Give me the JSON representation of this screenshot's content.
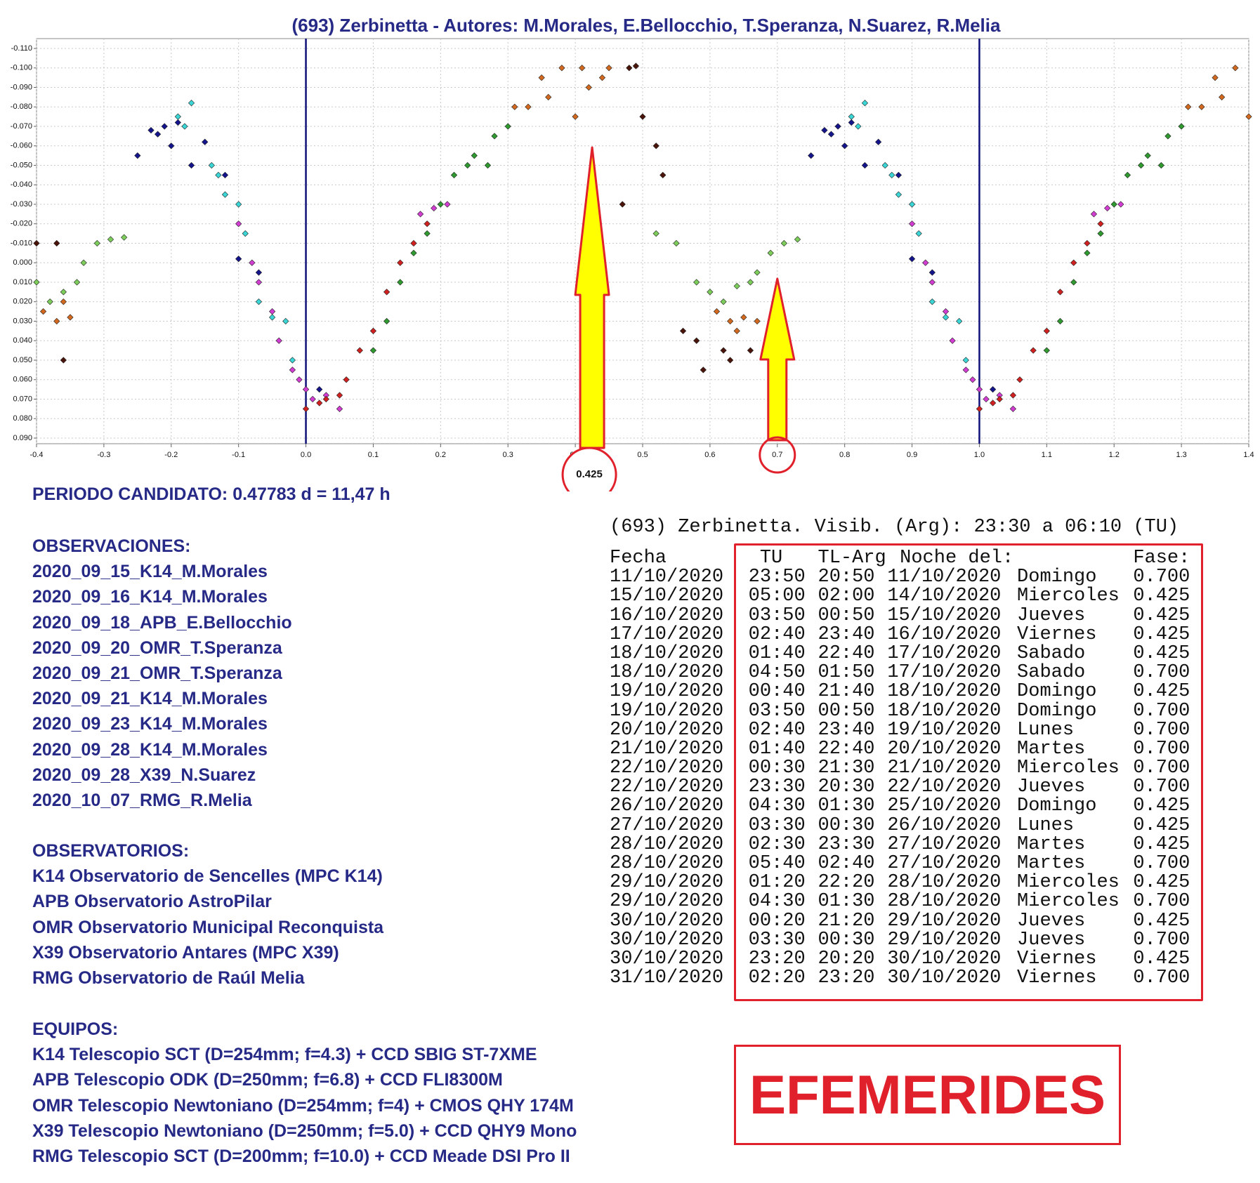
{
  "chart_data": {
    "type": "scatter",
    "title": "(693) Zerbinetta - Autores: M.Morales, E.Bellocchio, T.Speranza, N.Suarez, R.Melia",
    "xlim": [
      -0.4,
      1.4
    ],
    "xticks": [
      {
        "value": -0.4,
        "label": "-0.4"
      },
      {
        "value": -0.3,
        "label": "-0.3"
      },
      {
        "value": -0.2,
        "label": "-0.2"
      },
      {
        "value": -0.1,
        "label": "-0.1"
      },
      {
        "value": 0,
        "label": "0.0"
      },
      {
        "value": 0.1,
        "label": "0.1"
      },
      {
        "value": 0.2,
        "label": "0.2"
      },
      {
        "value": 0.3,
        "label": "0.3"
      },
      {
        "value": 0.4,
        "label": "0.4"
      },
      {
        "value": 0.5,
        "label": "0.5"
      },
      {
        "value": 0.6,
        "label": "0.6"
      },
      {
        "value": 0.7,
        "label": "0.7"
      },
      {
        "value": 0.8,
        "label": "0.8"
      },
      {
        "value": 0.9,
        "label": "0.9"
      },
      {
        "value": 1,
        "label": "1.0"
      },
      {
        "value": 1.1,
        "label": "1.1"
      },
      {
        "value": 1.2,
        "label": "1.2"
      },
      {
        "value": 1.3,
        "label": "1.3"
      },
      {
        "value": 1.4,
        "label": "1.4"
      }
    ],
    "ylim": [
      -0.11,
      0.09
    ],
    "y_inverted": true,
    "yticks": [
      {
        "value": -0.11,
        "label": "-0.110"
      },
      {
        "value": -0.1,
        "label": "-0.100"
      },
      {
        "value": -0.09,
        "label": "-0.090"
      },
      {
        "value": -0.08,
        "label": "-0.080"
      },
      {
        "value": -0.07,
        "label": "-0.070"
      },
      {
        "value": -0.06,
        "label": "-0.060"
      },
      {
        "value": -0.05,
        "label": "-0.050"
      },
      {
        "value": -0.04,
        "label": "-0.040"
      },
      {
        "value": -0.03,
        "label": "-0.030"
      },
      {
        "value": -0.02,
        "label": "-0.020"
      },
      {
        "value": -0.01,
        "label": "-0.010"
      },
      {
        "value": 0,
        "label": "0.000"
      },
      {
        "value": 0.01,
        "label": "0.010"
      },
      {
        "value": 0.02,
        "label": "0.020"
      },
      {
        "value": 0.03,
        "label": "0.030"
      },
      {
        "value": 0.04,
        "label": "0.040"
      },
      {
        "value": 0.05,
        "label": "0.050"
      },
      {
        "value": 0.06,
        "label": "0.060"
      },
      {
        "value": 0.07,
        "label": "0.070"
      },
      {
        "value": 0.08,
        "label": "0.080"
      },
      {
        "value": 0.09,
        "label": "0.090"
      }
    ],
    "grid": true,
    "marker": "diamond",
    "vlines": [
      0,
      1
    ],
    "vline_color": "#10107a",
    "arrows": [
      {
        "x": 0.425,
        "label": "0.425"
      },
      {
        "x": 0.7
      }
    ],
    "series": [
      {
        "color": "#14148c",
        "x": [
          -0.25,
          -0.23,
          -0.22,
          -0.21,
          -0.2,
          -0.19,
          -0.17,
          -0.15,
          -0.12,
          -0.1,
          -0.07,
          0.02,
          0.75,
          0.77,
          0.78,
          0.79,
          0.8,
          0.81,
          0.83,
          0.85,
          0.88,
          0.9,
          0.93,
          1.02
        ],
        "values": [
          -0.055,
          -0.068,
          -0.066,
          -0.07,
          -0.06,
          -0.072,
          -0.05,
          -0.062,
          -0.045,
          -0.002,
          0.005,
          0.065,
          -0.055,
          -0.068,
          -0.066,
          -0.07,
          -0.06,
          -0.072,
          -0.05,
          -0.062,
          -0.045,
          -0.002,
          0.005,
          0.065
        ]
      },
      {
        "color": "#3ad6d6",
        "x": [
          -0.19,
          -0.18,
          -0.17,
          -0.14,
          -0.13,
          -0.12,
          -0.1,
          -0.09,
          -0.07,
          -0.05,
          -0.03,
          -0.02,
          0.81,
          0.82,
          0.83,
          0.86,
          0.87,
          0.88,
          0.9,
          0.91,
          0.93,
          0.95,
          0.97,
          0.98
        ],
        "values": [
          -0.075,
          -0.07,
          -0.082,
          -0.05,
          -0.045,
          -0.035,
          -0.03,
          -0.015,
          0.02,
          0.028,
          0.03,
          0.05,
          -0.075,
          -0.07,
          -0.082,
          -0.05,
          -0.045,
          -0.035,
          -0.03,
          -0.015,
          0.02,
          0.028,
          0.03,
          0.05
        ]
      },
      {
        "color": "#d23cd2",
        "x": [
          -0.1,
          -0.08,
          -0.07,
          -0.05,
          -0.04,
          -0.02,
          -0.01,
          0,
          0.01,
          0.03,
          0.05,
          0.17,
          0.19,
          0.21,
          0.9,
          0.92,
          0.93,
          0.95,
          0.96,
          0.98,
          0.99,
          1,
          1.01,
          1.03,
          1.05,
          1.17,
          1.19,
          1.21
        ],
        "values": [
          -0.02,
          0,
          0.01,
          0.025,
          0.04,
          0.055,
          0.06,
          0.065,
          0.07,
          0.068,
          0.075,
          -0.025,
          -0.028,
          -0.03,
          -0.02,
          0,
          0.01,
          0.025,
          0.04,
          0.055,
          0.06,
          0.065,
          0.07,
          0.068,
          0.075,
          -0.025,
          -0.028,
          -0.03
        ]
      },
      {
        "color": "#2f9a2f",
        "x": [
          0.1,
          0.12,
          0.14,
          0.16,
          0.18,
          0.2,
          0.22,
          0.24,
          0.25,
          0.27,
          0.28,
          0.3,
          1.1,
          1.12,
          1.14,
          1.16,
          1.18,
          1.2,
          1.22,
          1.24,
          1.25,
          1.27,
          1.28,
          1.3
        ],
        "values": [
          0.045,
          0.03,
          0.01,
          -0.005,
          -0.015,
          -0.03,
          -0.045,
          -0.05,
          -0.055,
          -0.05,
          -0.065,
          -0.07,
          0.045,
          0.03,
          0.01,
          -0.005,
          -0.015,
          -0.03,
          -0.045,
          -0.05,
          -0.055,
          -0.05,
          -0.065,
          -0.07
        ]
      },
      {
        "color": "#7ccd5a",
        "x": [
          -0.4,
          -0.38,
          -0.36,
          -0.34,
          -0.33,
          -0.31,
          -0.29,
          -0.27,
          0.52,
          0.55,
          0.58,
          0.6,
          0.62,
          0.64,
          0.66,
          0.67,
          0.69,
          0.71,
          0.73
        ],
        "values": [
          0.01,
          0.02,
          0.015,
          0.01,
          0,
          -0.01,
          -0.012,
          -0.013,
          -0.015,
          -0.01,
          0.01,
          0.015,
          0.02,
          0.012,
          0.01,
          0.005,
          -0.005,
          -0.01,
          -0.012
        ]
      },
      {
        "color": "#d02020",
        "x": [
          0,
          0.02,
          0.03,
          0.05,
          0.06,
          0.08,
          0.1,
          0.12,
          0.14,
          0.16,
          0.18,
          1,
          1.02,
          1.03,
          1.05,
          1.06,
          1.08,
          1.1,
          1.12,
          1.14,
          1.16,
          1.18
        ],
        "values": [
          0.075,
          0.072,
          0.07,
          0.068,
          0.06,
          0.045,
          0.035,
          0.015,
          0,
          -0.01,
          -0.02,
          0.075,
          0.072,
          0.07,
          0.068,
          0.06,
          0.045,
          0.035,
          0.015,
          0,
          -0.01,
          -0.02
        ]
      },
      {
        "color": "#d2691e",
        "x": [
          0.31,
          0.33,
          0.35,
          0.36,
          0.38,
          0.4,
          0.41,
          0.42,
          0.44,
          0.45,
          -0.39,
          -0.37,
          -0.36,
          -0.35,
          0.61,
          0.63,
          0.64,
          0.65,
          0.67,
          1.31,
          1.33,
          1.35,
          1.36,
          1.38,
          1.4
        ],
        "values": [
          -0.08,
          -0.08,
          -0.095,
          -0.085,
          -0.1,
          -0.075,
          -0.1,
          -0.09,
          -0.095,
          -0.1,
          0.025,
          0.03,
          0.02,
          0.028,
          0.025,
          0.03,
          0.035,
          0.028,
          0.03,
          -0.08,
          -0.08,
          -0.095,
          -0.085,
          -0.1,
          -0.075
        ]
      },
      {
        "color": "#4a140a",
        "x": [
          0.48,
          0.49,
          0.5,
          0.52,
          0.53,
          0.47,
          0.56,
          0.58,
          0.59,
          0.62,
          0.63,
          0.66,
          -0.4,
          -0.37,
          -0.36
        ],
        "values": [
          -0.1,
          -0.101,
          -0.075,
          -0.06,
          -0.045,
          -0.03,
          0.035,
          0.04,
          0.055,
          0.045,
          0.05,
          0.045,
          -0.01,
          -0.01,
          0.05
        ]
      }
    ]
  },
  "period": "PERIODO CANDIDATO: 0.47783 d = 11,47 h",
  "observations": {
    "title": "OBSERVACIONES:",
    "items": [
      "2020_09_15_K14_M.Morales",
      "2020_09_16_K14_M.Morales",
      "2020_09_18_APB_E.Bellocchio",
      "2020_09_20_OMR_T.Speranza",
      "2020_09_21_OMR_T.Speranza",
      "2020_09_21_K14_M.Morales",
      "2020_09_23_K14_M.Morales",
      "2020_09_28_K14_M.Morales",
      "2020_09_28_X39_N.Suarez",
      "2020_10_07_RMG_R.Melia"
    ]
  },
  "observatories": {
    "title": "OBSERVATORIOS:",
    "items": [
      "K14 Observatorio de Sencelles (MPC K14)",
      "APB Observatorio AstroPilar",
      "OMR Observatorio Municipal Reconquista",
      "X39 Observatorio Antares (MPC X39)",
      "RMG Observatorio de Raúl Melia"
    ]
  },
  "equipment": {
    "title": "EQUIPOS:",
    "items": [
      "K14 Telescopio SCT (D=254mm; f=4.3) + CCD SBIG ST-7XME",
      "APB Telescopio ODK (D=250mm; f=6.8) + CCD FLI8300M",
      "OMR Telescopio Newtoniano (D=254mm; f=4) + CMOS QHY 174M",
      "X39 Telescopio Newtoniano (D=250mm; f=5.0) + CCD QHY9 Mono",
      "RMG Telescopio SCT (D=200mm; f=10.0) + CCD Meade DSI Pro II"
    ]
  },
  "ephemeris": {
    "title": "(693) Zerbinetta. Visib. (Arg): 23:30 a 06:10 (TU)",
    "columns": [
      "Fecha",
      "TU",
      "TL-Arg",
      "Noche del:",
      "Fase:"
    ],
    "rows": [
      [
        "11/10/2020",
        "23:50",
        "20:50",
        "11/10/2020",
        "Domingo",
        "0.700"
      ],
      [
        "15/10/2020",
        "05:00",
        "02:00",
        "14/10/2020",
        "Miercoles",
        "0.425"
      ],
      [
        "16/10/2020",
        "03:50",
        "00:50",
        "15/10/2020",
        "Jueves",
        "0.425"
      ],
      [
        "17/10/2020",
        "02:40",
        "23:40",
        "16/10/2020",
        "Viernes",
        "0.425"
      ],
      [
        "18/10/2020",
        "01:40",
        "22:40",
        "17/10/2020",
        "Sabado",
        "0.425"
      ],
      [
        "18/10/2020",
        "04:50",
        "01:50",
        "17/10/2020",
        "Sabado",
        "0.700"
      ],
      [
        "19/10/2020",
        "00:40",
        "21:40",
        "18/10/2020",
        "Domingo",
        "0.425"
      ],
      [
        "19/10/2020",
        "03:50",
        "00:50",
        "18/10/2020",
        "Domingo",
        "0.700"
      ],
      [
        "20/10/2020",
        "02:40",
        "23:40",
        "19/10/2020",
        "Lunes",
        "0.700"
      ],
      [
        "21/10/2020",
        "01:40",
        "22:40",
        "20/10/2020",
        "Martes",
        "0.700"
      ],
      [
        "22/10/2020",
        "00:30",
        "21:30",
        "21/10/2020",
        "Miercoles",
        "0.700"
      ],
      [
        "22/10/2020",
        "23:30",
        "20:30",
        "22/10/2020",
        "Jueves",
        "0.700"
      ],
      [
        "26/10/2020",
        "04:30",
        "01:30",
        "25/10/2020",
        "Domingo",
        "0.425"
      ],
      [
        "27/10/2020",
        "03:30",
        "00:30",
        "26/10/2020",
        "Lunes",
        "0.425"
      ],
      [
        "28/10/2020",
        "02:30",
        "23:30",
        "27/10/2020",
        "Martes",
        "0.425"
      ],
      [
        "28/10/2020",
        "05:40",
        "02:40",
        "27/10/2020",
        "Martes",
        "0.700"
      ],
      [
        "29/10/2020",
        "01:20",
        "22:20",
        "28/10/2020",
        "Miercoles",
        "0.425"
      ],
      [
        "29/10/2020",
        "04:30",
        "01:30",
        "28/10/2020",
        "Miercoles",
        "0.700"
      ],
      [
        "30/10/2020",
        "00:20",
        "21:20",
        "29/10/2020",
        "Jueves",
        "0.425"
      ],
      [
        "30/10/2020",
        "03:30",
        "00:30",
        "29/10/2020",
        "Jueves",
        "0.700"
      ],
      [
        "30/10/2020",
        "23:20",
        "20:20",
        "30/10/2020",
        "Viernes",
        "0.425"
      ],
      [
        "31/10/2020",
        "02:20",
        "23:20",
        "30/10/2020",
        "Viernes",
        "0.700"
      ]
    ]
  },
  "stamp": "EFEMERIDES"
}
